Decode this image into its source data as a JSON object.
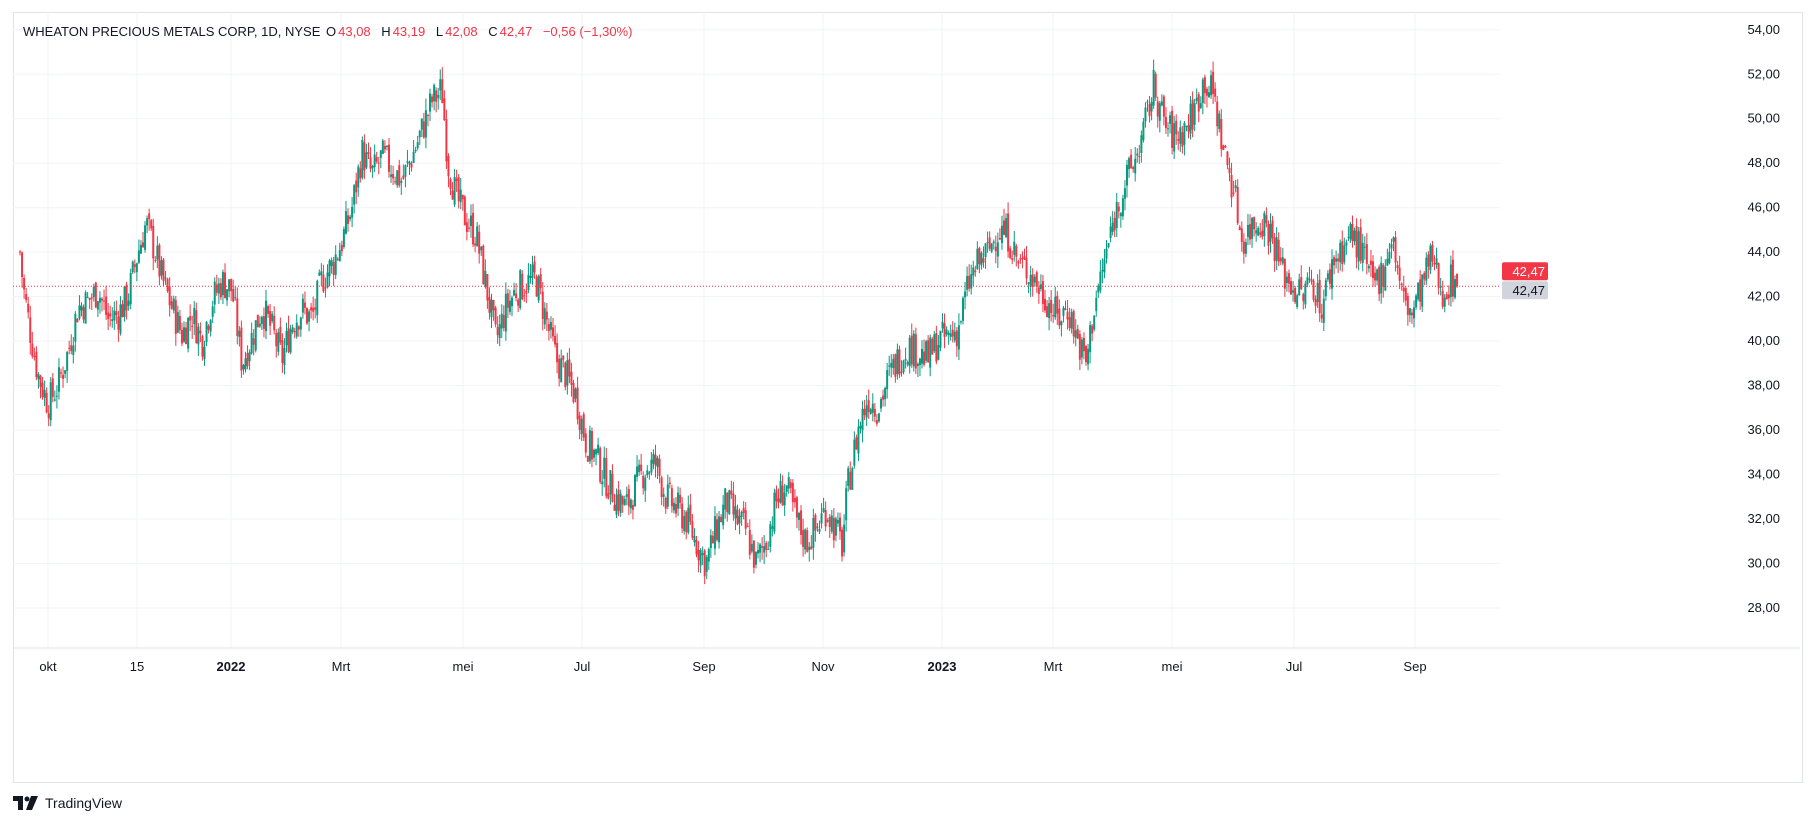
{
  "colors": {
    "up": "#089981",
    "down": "#f23645",
    "grid": "#f0f3fa",
    "price_line": "#f23645",
    "badge_gray": "#d1d4dc"
  },
  "legend": {
    "title": "WHEATON PRECIOUS METALS CORP, 1D, NYSE",
    "o_label": "O",
    "o_value": "43,08",
    "h_label": "H",
    "h_value": "43,19",
    "l_label": "L",
    "l_value": "42,08",
    "c_label": "C",
    "c_value": "42,47",
    "change": "−0,56 (−1,30%)"
  },
  "footer": {
    "logo_icon": "tradingview-logo-icon",
    "brand": "TradingView"
  },
  "chart_data": {
    "type": "candlestick",
    "title": "WHEATON PRECIOUS METALS CORP, 1D, NYSE",
    "x_tick_labels": [
      {
        "label": "okt",
        "bold": false,
        "month": 1
      },
      {
        "label": "15",
        "bold": false,
        "month": 4.5
      },
      {
        "label": "2022",
        "bold": true,
        "month": 4.5
      },
      {
        "label": "Mrt",
        "bold": false,
        "month": 6.5
      },
      {
        "label": "mei",
        "bold": false,
        "month": 8.5
      },
      {
        "label": "Jul",
        "bold": false,
        "month": 10.5
      },
      {
        "label": "Sep",
        "bold": false,
        "month": 12.5
      },
      {
        "label": "Nov",
        "bold": false,
        "month": 14.5
      },
      {
        "label": "2023",
        "bold": true,
        "month": 16.5
      },
      {
        "label": "Mrt",
        "bold": false,
        "month": 18.5
      },
      {
        "label": "mei",
        "bold": false,
        "month": 20.5
      },
      {
        "label": "Jul",
        "bold": false,
        "month": 22.5
      },
      {
        "label": "Sep",
        "bold": false,
        "month": 24.5
      }
    ],
    "y_ticks": [
      "28,00",
      "30,00",
      "32,00",
      "34,00",
      "36,00",
      "38,00",
      "40,00",
      "42,00",
      "44,00",
      "46,00",
      "48,00",
      "50,00",
      "52,00",
      "54,00"
    ],
    "ylim": [
      26.2,
      54.8
    ],
    "last_price": 42.47,
    "last_price_label": "42,47",
    "close_path": [
      [
        0,
        44.0
      ],
      [
        3,
        42.5
      ],
      [
        10,
        40.5
      ],
      [
        18,
        38.5
      ],
      [
        28,
        37.2
      ],
      [
        38,
        38.0
      ],
      [
        48,
        39.5
      ],
      [
        58,
        41.5
      ],
      [
        68,
        41.8
      ],
      [
        78,
        42.3
      ],
      [
        88,
        41.0
      ],
      [
        98,
        41.2
      ],
      [
        108,
        42.0
      ],
      [
        118,
        44.0
      ],
      [
        126,
        45.3
      ],
      [
        134,
        44.2
      ],
      [
        142,
        42.8
      ],
      [
        152,
        41.5
      ],
      [
        162,
        40.3
      ],
      [
        172,
        41.2
      ],
      [
        182,
        40.0
      ],
      [
        192,
        41.8
      ],
      [
        202,
        42.7
      ],
      [
        212,
        42.3
      ],
      [
        222,
        39.0
      ],
      [
        232,
        40.2
      ],
      [
        242,
        41.5
      ],
      [
        252,
        40.5
      ],
      [
        262,
        39.2
      ],
      [
        272,
        40.8
      ],
      [
        282,
        41.4
      ],
      [
        292,
        41.0
      ],
      [
        302,
        42.8
      ],
      [
        312,
        43.4
      ],
      [
        322,
        44.5
      ],
      [
        332,
        46.0
      ],
      [
        342,
        48.5
      ],
      [
        352,
        47.5
      ],
      [
        362,
        48.3
      ],
      [
        372,
        47.8
      ],
      [
        382,
        47.2
      ],
      [
        392,
        48.3
      ],
      [
        402,
        49.5
      ],
      [
        412,
        50.8
      ],
      [
        422,
        51.3
      ],
      [
        428,
        48.0
      ],
      [
        436,
        46.5
      ],
      [
        446,
        45.5
      ],
      [
        456,
        44.8
      ],
      [
        466,
        42.5
      ],
      [
        476,
        40.0
      ],
      [
        486,
        41.5
      ],
      [
        496,
        42.3
      ],
      [
        506,
        42.6
      ],
      [
        516,
        42.8
      ],
      [
        526,
        41.0
      ],
      [
        536,
        39.2
      ],
      [
        546,
        38.5
      ],
      [
        556,
        37.5
      ],
      [
        566,
        35.5
      ],
      [
        576,
        34.8
      ],
      [
        586,
        33.8
      ],
      [
        596,
        33.0
      ],
      [
        606,
        32.5
      ],
      [
        616,
        33.5
      ],
      [
        626,
        34.3
      ],
      [
        636,
        34.5
      ],
      [
        646,
        33.0
      ],
      [
        656,
        32.5
      ],
      [
        666,
        32.0
      ],
      [
        676,
        31.0
      ],
      [
        686,
        30.0
      ],
      [
        696,
        31.5
      ],
      [
        706,
        32.8
      ],
      [
        716,
        32.0
      ],
      [
        726,
        31.5
      ],
      [
        736,
        30.0
      ],
      [
        746,
        31.0
      ],
      [
        756,
        32.8
      ],
      [
        766,
        33.5
      ],
      [
        776,
        32.0
      ],
      [
        786,
        31.0
      ],
      [
        796,
        31.5
      ],
      [
        806,
        32.5
      ],
      [
        816,
        31.5
      ],
      [
        822,
        30.8
      ],
      [
        828,
        33.5
      ],
      [
        838,
        36.0
      ],
      [
        848,
        37.5
      ],
      [
        858,
        37.0
      ],
      [
        868,
        38.3
      ],
      [
        878,
        39.2
      ],
      [
        888,
        39.8
      ],
      [
        898,
        39.5
      ],
      [
        908,
        39.2
      ],
      [
        918,
        40.0
      ],
      [
        928,
        40.2
      ],
      [
        938,
        40.5
      ],
      [
        948,
        42.5
      ],
      [
        958,
        43.5
      ],
      [
        968,
        44.0
      ],
      [
        978,
        45.0
      ],
      [
        988,
        44.8
      ],
      [
        998,
        43.5
      ],
      [
        1008,
        43.2
      ],
      [
        1018,
        42.5
      ],
      [
        1028,
        41.8
      ],
      [
        1038,
        41.0
      ],
      [
        1048,
        41.5
      ],
      [
        1058,
        40.0
      ],
      [
        1066,
        39.0
      ],
      [
        1074,
        41.5
      ],
      [
        1084,
        43.5
      ],
      [
        1094,
        45.5
      ],
      [
        1104,
        47.0
      ],
      [
        1114,
        48.0
      ],
      [
        1124,
        49.5
      ],
      [
        1134,
        51.5
      ],
      [
        1144,
        49.8
      ],
      [
        1154,
        49.2
      ],
      [
        1164,
        49.5
      ],
      [
        1174,
        50.3
      ],
      [
        1184,
        51.8
      ],
      [
        1194,
        51.0
      ],
      [
        1204,
        48.5
      ],
      [
        1214,
        46.8
      ],
      [
        1222,
        44.5
      ],
      [
        1232,
        45.2
      ],
      [
        1242,
        45.5
      ],
      [
        1252,
        44.8
      ],
      [
        1262,
        43.2
      ],
      [
        1272,
        42.5
      ],
      [
        1282,
        42.0
      ],
      [
        1292,
        42.8
      ],
      [
        1302,
        41.5
      ],
      [
        1312,
        43.5
      ],
      [
        1322,
        44.2
      ],
      [
        1332,
        44.8
      ],
      [
        1342,
        44.0
      ],
      [
        1352,
        42.5
      ],
      [
        1362,
        43.0
      ],
      [
        1372,
        44.8
      ],
      [
        1382,
        42.0
      ],
      [
        1392,
        41.2
      ],
      [
        1402,
        42.5
      ],
      [
        1412,
        43.8
      ],
      [
        1422,
        42.2
      ],
      [
        1432,
        42.8
      ],
      [
        1438,
        42.47
      ]
    ]
  }
}
